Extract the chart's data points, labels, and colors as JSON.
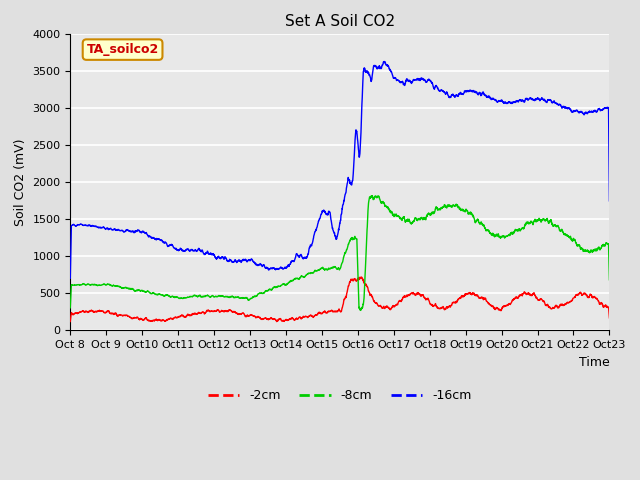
{
  "title": "Set A Soil CO2",
  "ylabel": "Soil CO2 (mV)",
  "xlabel": "Time",
  "legend_label": "TA_soilco2",
  "series_labels": [
    "-2cm",
    "-8cm",
    "-16cm"
  ],
  "series_colors": [
    "#ff0000",
    "#00cc00",
    "#0000ff"
  ],
  "ylim": [
    0,
    4000
  ],
  "yticks": [
    0,
    500,
    1000,
    1500,
    2000,
    2500,
    3000,
    3500,
    4000
  ],
  "xtick_labels": [
    "Oct 8",
    "Oct 9",
    "Oct 10",
    "Oct 11",
    "Oct 12",
    "Oct 13",
    "Oct 14",
    "Oct 15",
    "Oct 16",
    "Oct 17",
    "Oct 18",
    "Oct 19",
    "Oct 20",
    "Oct 21",
    "Oct 22",
    "Oct 23"
  ],
  "background_color": "#e0e0e0",
  "plot_bg_color": "#e8e8e8",
  "grid_color": "#ffffff",
  "legend_box_facecolor": "#ffffcc",
  "legend_box_edgecolor": "#cc8800",
  "legend_text_color": "#cc0000",
  "title_fontsize": 11,
  "axis_label_fontsize": 9,
  "tick_fontsize": 8
}
